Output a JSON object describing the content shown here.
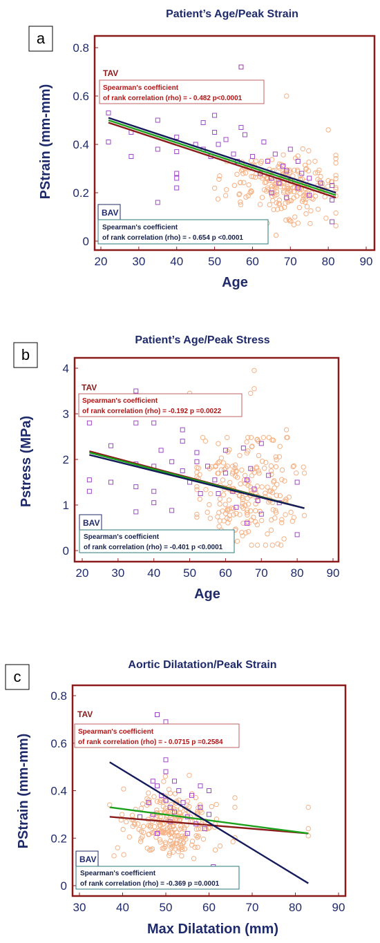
{
  "colors": {
    "plot_border": "#8b1a1a",
    "title_text": "#1f2a6b",
    "tav_point": "#f4b184",
    "bav_point": "#a046c8",
    "line_tav": "#8b1a1a",
    "line_all": "#1aa01a",
    "line_bav": "#151a5a"
  },
  "panels": [
    {
      "letter": "a",
      "title": "Patient’s Age/Peak Strain",
      "xlabel": "Age",
      "ylabel": "PStrain (mm-mm)",
      "tav_box": {
        "tag": "TAV",
        "line1": "Spearman's coefficient",
        "line2": "of rank correlation (rho) = - 0.482 p<0.0001"
      },
      "bav_box": {
        "tag": "BAV",
        "line1": "Spearman's coefficient",
        "line2": "of rank correlation (rho) = - 0.654 p <0.0001"
      }
    },
    {
      "letter": "b",
      "title": "Patient’s Age/Peak Stress",
      "xlabel": "Age",
      "ylabel": "Pstress (MPa)",
      "tav_box": {
        "tag": "TAV",
        "line1": "Spearman's coefficient",
        "line2": "of rank correlation (rho) = -0.192 p =0.0022"
      },
      "bav_box": {
        "tag": "BAV",
        "line1": "Spearman's coefficient",
        "line2": "of rank correlation (rho) = -0.401 p <0.0001"
      }
    },
    {
      "letter": "c",
      "title": "Aortic Dilatation/Peak Strain",
      "xlabel": "Max Dilatation (mm)",
      "ylabel": "PStrain (mm-mm)",
      "tav_box": {
        "tag": "TAV",
        "line1": "Spearman's coefficient",
        "line2": "of rank correlation (rho) = - 0.0715 p =0.2584"
      },
      "bav_box": {
        "tag": "BAV",
        "line1": "Spearman's coefficient",
        "line2": "of rank correlation (rho) = -0.369 p =0.0001"
      }
    }
  ],
  "chart_data": [
    {
      "type": "scatter",
      "title": "Patient’s Age/Peak Strain",
      "xlabel": "Age",
      "ylabel": "PStrain (mm-mm)",
      "xlim": [
        20,
        90
      ],
      "ylim": [
        0,
        0.8
      ],
      "xticks": [
        20,
        30,
        40,
        50,
        60,
        70,
        80,
        90
      ],
      "yticks": [
        0,
        0.2,
        0.4,
        0.6,
        0.8
      ],
      "grid": false,
      "lines": [
        {
          "name": "TAV",
          "color": "#8b1a1a",
          "x": [
            22,
            82
          ],
          "y": [
            0.49,
            0.18
          ]
        },
        {
          "name": "",
          "color": "#1aa01a",
          "x": [
            22,
            82
          ],
          "y": [
            0.5,
            0.19
          ]
        },
        {
          "name": "BAV",
          "color": "#151a5a",
          "x": [
            22,
            82
          ],
          "y": [
            0.51,
            0.2
          ]
        }
      ],
      "scatter": {
        "tav": {
          "count": 230,
          "x_range": [
            48,
            82
          ],
          "center": [
            67,
            0.23
          ],
          "spread": [
            8,
            0.07
          ],
          "extra": [
            [
              57,
              0.72
            ],
            [
              80,
              0.46
            ],
            [
              69,
              0.6
            ]
          ]
        },
        "bav": {
          "points": [
            [
              22,
              0.53
            ],
            [
              22,
              0.41
            ],
            [
              28,
              0.45
            ],
            [
              28,
              0.35
            ],
            [
              35,
              0.5
            ],
            [
              35,
              0.38
            ],
            [
              35,
              0.16
            ],
            [
              40,
              0.43
            ],
            [
              40,
              0.37
            ],
            [
              40,
              0.28
            ],
            [
              40,
              0.22
            ],
            [
              40,
              0.26
            ],
            [
              45,
              0.4
            ],
            [
              47,
              0.49
            ],
            [
              47,
              0.38
            ],
            [
              49,
              0.35
            ],
            [
              50,
              0.52
            ],
            [
              50,
              0.45
            ],
            [
              51,
              0.4
            ],
            [
              53,
              0.42
            ],
            [
              55,
              0.36
            ],
            [
              56,
              0.33
            ],
            [
              57,
              0.72
            ],
            [
              57,
              0.47
            ],
            [
              58,
              0.44
            ],
            [
              60,
              0.35
            ],
            [
              62,
              0.28
            ],
            [
              63,
              0.41
            ],
            [
              64,
              0.33
            ],
            [
              65,
              0.26
            ],
            [
              65,
              0.2
            ],
            [
              66,
              0.36
            ],
            [
              67,
              0.24
            ],
            [
              68,
              0.31
            ],
            [
              69,
              0.29
            ],
            [
              69,
              0.18
            ],
            [
              70,
              0.38
            ],
            [
              70,
              0.25
            ],
            [
              72,
              0.33
            ],
            [
              72,
              0.22
            ],
            [
              73,
              0.28
            ],
            [
              75,
              0.26
            ],
            [
              75,
              0.19
            ],
            [
              78,
              0.24
            ],
            [
              81,
              0.08
            ],
            [
              81,
              0.17
            ],
            [
              81,
              0.23
            ]
          ]
        }
      }
    },
    {
      "type": "scatter",
      "title": "Patient’s Age/Peak Stress",
      "xlabel": "Age",
      "ylabel": "Pstress (MPa)",
      "xlim": [
        20,
        90
      ],
      "ylim": [
        0,
        4
      ],
      "xticks": [
        20,
        30,
        40,
        50,
        60,
        70,
        80,
        90
      ],
      "yticks": [
        0,
        1,
        2,
        3,
        4
      ],
      "grid": false,
      "lines": [
        {
          "name": "TAV",
          "color": "#8b1a1a",
          "x": [
            22,
            82
          ],
          "y": [
            2.18,
            0.93
          ]
        },
        {
          "name": "",
          "color": "#1aa01a",
          "x": [
            22,
            82
          ],
          "y": [
            2.15,
            0.93
          ]
        },
        {
          "name": "BAV",
          "color": "#151a5a",
          "x": [
            22,
            82
          ],
          "y": [
            2.1,
            0.93
          ]
        }
      ],
      "scatter": {
        "tav": {
          "count": 230,
          "x_range": [
            52,
            82
          ],
          "center": [
            66,
            1.3
          ],
          "spread": [
            8,
            0.6
          ],
          "extra": [
            [
              68,
              3.95
            ],
            [
              68,
              3.55
            ],
            [
              67,
              3.45
            ],
            [
              38,
              3.1
            ],
            [
              50,
              3.45
            ],
            [
              77,
              2.65
            ]
          ]
        },
        "bav": {
          "points": [
            [
              22,
              2.8
            ],
            [
              22,
              1.55
            ],
            [
              22,
              1.3
            ],
            [
              28,
              2.3
            ],
            [
              28,
              1.5
            ],
            [
              35,
              3.5
            ],
            [
              35,
              3.4
            ],
            [
              35,
              2.8
            ],
            [
              35,
              1.9
            ],
            [
              35,
              1.4
            ],
            [
              35,
              0.85
            ],
            [
              40,
              2.8
            ],
            [
              40,
              1.85
            ],
            [
              40,
              1.3
            ],
            [
              40,
              1.05
            ],
            [
              42,
              2.2
            ],
            [
              45,
              1.95
            ],
            [
              45,
              0.88
            ],
            [
              48,
              2.65
            ],
            [
              48,
              2.4
            ],
            [
              48,
              1.75
            ],
            [
              50,
              1.5
            ],
            [
              52,
              2.15
            ],
            [
              52,
              1.95
            ],
            [
              53,
              1.25
            ],
            [
              55,
              1.85
            ],
            [
              57,
              1.55
            ],
            [
              58,
              1.25
            ],
            [
              60,
              2.2
            ],
            [
              60,
              1.7
            ],
            [
              62,
              1.3
            ],
            [
              63,
              0.95
            ],
            [
              65,
              2.25
            ],
            [
              66,
              1.55
            ],
            [
              66,
              0.6
            ],
            [
              67,
              1.8
            ],
            [
              68,
              1.35
            ],
            [
              69,
              1.1
            ],
            [
              70,
              2.35
            ],
            [
              70,
              0.8
            ],
            [
              72,
              1.65
            ],
            [
              75,
              1.05
            ],
            [
              80,
              1.5
            ],
            [
              80,
              0.35
            ]
          ]
        }
      }
    },
    {
      "type": "scatter",
      "title": "Aortic Dilatation/Peak Strain",
      "xlabel": "Max Dilatation (mm)",
      "ylabel": "PStrain (mm-mm)",
      "xlim": [
        30,
        90
      ],
      "ylim": [
        0,
        0.8
      ],
      "xticks": [
        30,
        40,
        50,
        60,
        70,
        80,
        90
      ],
      "yticks": [
        0,
        0.2,
        0.4,
        0.6,
        0.8
      ],
      "grid": false,
      "lines": [
        {
          "name": "TAV",
          "color": "#8b1a1a",
          "x": [
            37,
            83
          ],
          "y": [
            0.29,
            0.22
          ]
        },
        {
          "name": "",
          "color": "#1aa01a",
          "x": [
            37,
            83
          ],
          "y": [
            0.33,
            0.22
          ]
        },
        {
          "name": "BAV",
          "color": "#151a5a",
          "x": [
            37,
            83
          ],
          "y": [
            0.52,
            0.01
          ]
        }
      ],
      "scatter": {
        "tav": {
          "count": 230,
          "x_range": [
            37,
            66
          ],
          "center": [
            51,
            0.25
          ],
          "spread": [
            5,
            0.07
          ],
          "extra": [
            [
              37,
              0.34
            ],
            [
              83,
              0.33
            ],
            [
              83,
              0.24
            ],
            [
              83,
              0.21
            ],
            [
              66,
              0.37
            ],
            [
              66,
              0.33
            ]
          ]
        },
        "bav": {
          "points": [
            [
              48,
              0.72
            ],
            [
              50,
              0.69
            ],
            [
              47,
              0.44
            ],
            [
              48,
              0.42
            ],
            [
              49,
              0.38
            ],
            [
              50,
              0.53
            ],
            [
              50,
              0.48
            ],
            [
              50,
              0.36
            ],
            [
              51,
              0.33
            ],
            [
              51,
              0.27
            ],
            [
              52,
              0.44
            ],
            [
              52,
              0.31
            ],
            [
              53,
              0.4
            ],
            [
              54,
              0.35
            ],
            [
              55,
              0.29
            ],
            [
              55,
              0.22
            ],
            [
              56,
              0.38
            ],
            [
              57,
              0.26
            ],
            [
              58,
              0.42
            ],
            [
              58,
              0.33
            ],
            [
              59,
              0.24
            ],
            [
              60,
              0.4
            ],
            [
              60,
              0.3
            ],
            [
              61,
              0.08
            ],
            [
              47,
              0.3
            ],
            [
              48,
              0.22
            ],
            [
              46,
              0.35
            ],
            [
              44,
              0.29
            ]
          ]
        }
      }
    }
  ]
}
